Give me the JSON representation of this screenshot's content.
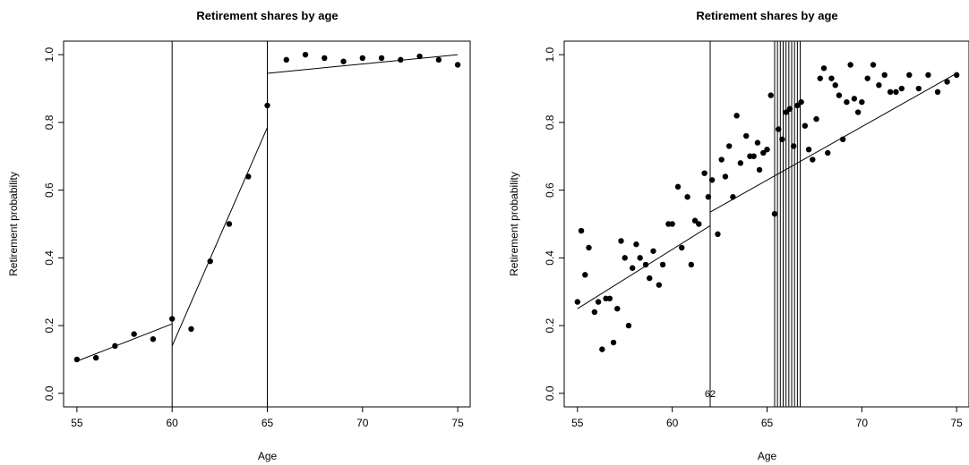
{
  "chart_data": [
    {
      "type": "scatter",
      "title": "Retirement shares by age",
      "xlabel": "Age",
      "ylabel": "Retirement probability",
      "xlim": [
        54.3,
        75.7
      ],
      "ylim": [
        -0.04,
        1.04
      ],
      "xticks": [
        55,
        60,
        65,
        70,
        75
      ],
      "yticks": [
        0.0,
        0.2,
        0.4,
        0.6,
        0.8,
        1.0
      ],
      "grid": false,
      "points": [
        [
          55,
          0.1
        ],
        [
          56,
          0.105
        ],
        [
          57,
          0.14
        ],
        [
          58,
          0.175
        ],
        [
          59,
          0.16
        ],
        [
          60,
          0.22
        ],
        [
          61,
          0.19
        ],
        [
          62,
          0.39
        ],
        [
          63,
          0.5
        ],
        [
          64,
          0.64
        ],
        [
          65,
          0.85
        ],
        [
          66,
          0.985
        ],
        [
          67,
          1.0
        ],
        [
          68,
          0.99
        ],
        [
          69,
          0.98
        ],
        [
          70,
          0.99
        ],
        [
          71,
          0.99
        ],
        [
          72,
          0.985
        ],
        [
          73,
          0.995
        ],
        [
          74,
          0.985
        ],
        [
          75,
          0.97
        ]
      ],
      "fit_segments": [
        [
          [
            55,
            0.095
          ],
          [
            60,
            0.205
          ]
        ],
        [
          [
            60,
            0.14
          ],
          [
            65,
            0.785
          ]
        ],
        [
          [
            65,
            0.945
          ],
          [
            75,
            1.0
          ]
        ]
      ],
      "vlines": [
        60,
        65
      ]
    },
    {
      "type": "scatter",
      "title": "Retirement shares by age",
      "xlabel": "Age",
      "ylabel": "Retirement probability",
      "xlim": [
        54.3,
        75.7
      ],
      "ylim": [
        -0.04,
        1.04
      ],
      "xticks": [
        55,
        60,
        65,
        70,
        75
      ],
      "yticks": [
        0.0,
        0.2,
        0.4,
        0.6,
        0.8,
        1.0
      ],
      "grid": false,
      "annotation": "62",
      "annotation_at": [
        62,
        0.0
      ],
      "points": [
        [
          55.0,
          0.27
        ],
        [
          55.2,
          0.48
        ],
        [
          55.4,
          0.35
        ],
        [
          55.6,
          0.43
        ],
        [
          55.9,
          0.24
        ],
        [
          56.1,
          0.27
        ],
        [
          56.3,
          0.13
        ],
        [
          56.5,
          0.28
        ],
        [
          56.7,
          0.28
        ],
        [
          56.9,
          0.15
        ],
        [
          57.1,
          0.25
        ],
        [
          57.3,
          0.45
        ],
        [
          57.5,
          0.4
        ],
        [
          57.7,
          0.2
        ],
        [
          57.9,
          0.37
        ],
        [
          58.1,
          0.44
        ],
        [
          58.3,
          0.4
        ],
        [
          58.6,
          0.38
        ],
        [
          58.8,
          0.34
        ],
        [
          59.0,
          0.42
        ],
        [
          59.3,
          0.32
        ],
        [
          59.5,
          0.38
        ],
        [
          59.8,
          0.5
        ],
        [
          60.0,
          0.5
        ],
        [
          60.3,
          0.61
        ],
        [
          60.5,
          0.43
        ],
        [
          60.8,
          0.58
        ],
        [
          61.0,
          0.38
        ],
        [
          61.2,
          0.51
        ],
        [
          61.4,
          0.5
        ],
        [
          61.7,
          0.65
        ],
        [
          61.9,
          0.58
        ],
        [
          62.1,
          0.63
        ],
        [
          62.4,
          0.47
        ],
        [
          62.6,
          0.69
        ],
        [
          62.8,
          0.64
        ],
        [
          63.0,
          0.73
        ],
        [
          63.2,
          0.58
        ],
        [
          63.4,
          0.82
        ],
        [
          63.6,
          0.68
        ],
        [
          63.9,
          0.76
        ],
        [
          64.1,
          0.7
        ],
        [
          64.3,
          0.7
        ],
        [
          64.5,
          0.74
        ],
        [
          64.6,
          0.66
        ],
        [
          64.8,
          0.71
        ],
        [
          65.0,
          0.72
        ],
        [
          65.2,
          0.88
        ],
        [
          65.4,
          0.53
        ],
        [
          65.6,
          0.78
        ],
        [
          65.8,
          0.75
        ],
        [
          66.0,
          0.83
        ],
        [
          66.2,
          0.84
        ],
        [
          66.4,
          0.73
        ],
        [
          66.6,
          0.85
        ],
        [
          66.8,
          0.86
        ],
        [
          67.0,
          0.79
        ],
        [
          67.2,
          0.72
        ],
        [
          67.4,
          0.69
        ],
        [
          67.6,
          0.81
        ],
        [
          67.8,
          0.93
        ],
        [
          68.0,
          0.96
        ],
        [
          68.2,
          0.71
        ],
        [
          68.4,
          0.93
        ],
        [
          68.6,
          0.91
        ],
        [
          68.8,
          0.88
        ],
        [
          69.0,
          0.75
        ],
        [
          69.2,
          0.86
        ],
        [
          69.4,
          0.97
        ],
        [
          69.6,
          0.87
        ],
        [
          69.8,
          0.83
        ],
        [
          70.0,
          0.86
        ],
        [
          70.3,
          0.93
        ],
        [
          70.6,
          0.97
        ],
        [
          70.9,
          0.91
        ],
        [
          71.2,
          0.94
        ],
        [
          71.5,
          0.89
        ],
        [
          71.8,
          0.89
        ],
        [
          72.1,
          0.9
        ],
        [
          72.5,
          0.94
        ],
        [
          73.0,
          0.9
        ],
        [
          73.5,
          0.94
        ],
        [
          74.0,
          0.89
        ],
        [
          74.5,
          0.92
        ],
        [
          75.0,
          0.94
        ]
      ],
      "fit_segments": [
        [
          [
            55,
            0.25
          ],
          [
            62,
            0.495
          ]
        ],
        [
          [
            62,
            0.535
          ],
          [
            75,
            0.945
          ]
        ]
      ],
      "vlines": [
        62,
        65.4,
        65.55,
        65.7,
        65.85,
        66.0,
        66.15,
        66.3,
        66.45,
        66.6,
        66.75
      ]
    }
  ]
}
